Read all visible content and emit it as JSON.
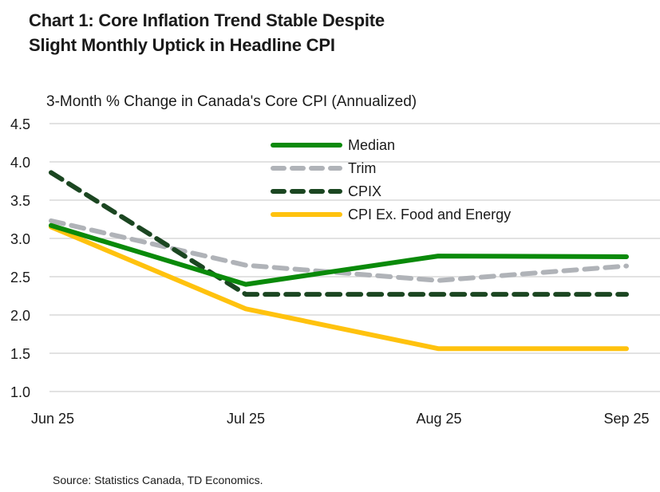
{
  "title_line1": "Chart 1: Core Inflation Trend Stable Despite",
  "title_line2": "Slight Monthly Uptick in Headline CPI",
  "subtitle": "3-Month % Change in Canada's Core CPI (Annualized)",
  "source": "Source: Statistics Canada, TD Economics.",
  "colors": {
    "median": "#0a8a0a",
    "trim": "#b0b3b8",
    "cpix": "#1b4621",
    "exfe": "#ffc20e",
    "grid": "#d9d9d9"
  },
  "chart_data": {
    "type": "line",
    "title": "Chart 1: Core Inflation Trend Stable Despite Slight Monthly Uptick in Headline CPI",
    "subtitle": "3-Month % Change in Canada's Core CPI (Annualized)",
    "xlabel": "",
    "ylabel": "",
    "categories": [
      "Jun 25",
      "Jul 25",
      "Aug 25",
      "Sep 25"
    ],
    "ylim": [
      1.0,
      4.5
    ],
    "yticks": [
      "4.5",
      "4.0",
      "3.5",
      "3.0",
      "2.5",
      "2.0",
      "1.5",
      "1.0"
    ],
    "grid": true,
    "legend_position": "upper center (inside plot)",
    "series": [
      {
        "name": "Median",
        "values": [
          3.17,
          2.4,
          2.77,
          2.76
        ],
        "style": "solid"
      },
      {
        "name": "Trim",
        "values": [
          3.23,
          2.65,
          2.45,
          2.64
        ],
        "style": "dashed"
      },
      {
        "name": "CPIX",
        "values": [
          3.86,
          2.27,
          2.27,
          2.27
        ],
        "style": "dashed"
      },
      {
        "name": "CPI Ex. Food and Energy",
        "values": [
          3.15,
          2.08,
          1.56,
          1.56
        ],
        "style": "solid"
      }
    ]
  }
}
